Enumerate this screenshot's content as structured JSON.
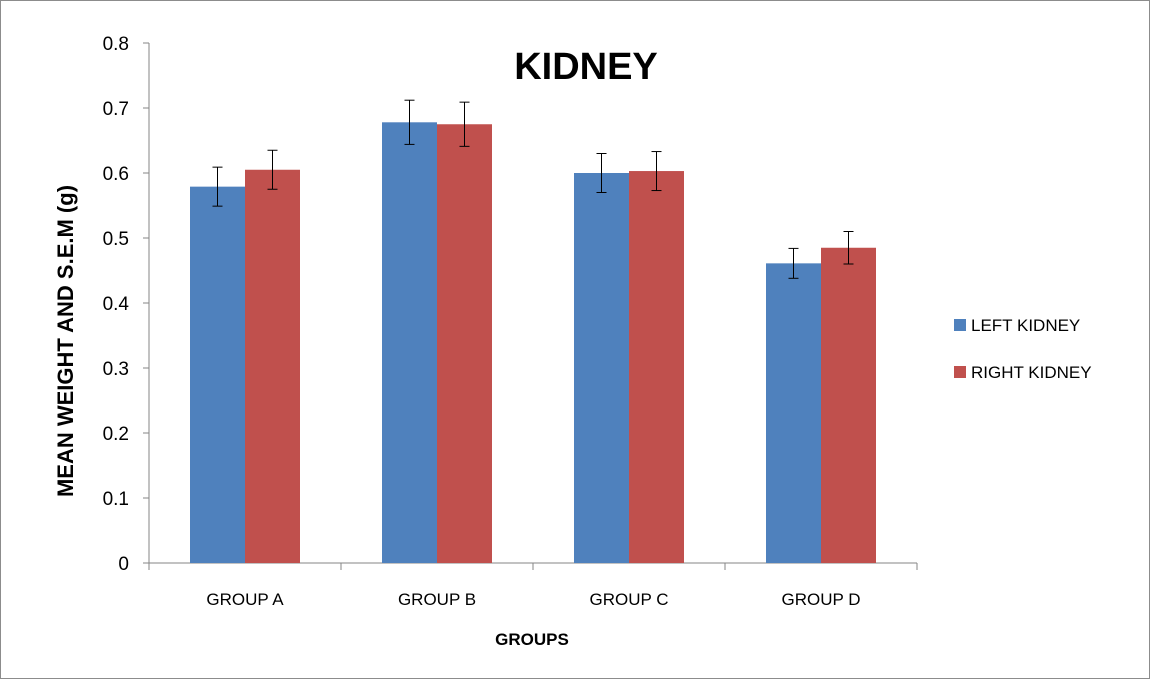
{
  "chart_data": {
    "type": "bar",
    "title": "KIDNEY",
    "xlabel": "GROUPS",
    "ylabel": "MEAN WEIGHT AND S.E.M (g)",
    "categories": [
      "GROUP A",
      "GROUP B",
      "GROUP C",
      "GROUP D"
    ],
    "ylim": [
      0,
      0.8
    ],
    "yticks": [
      "0",
      "0.1",
      "0.2",
      "0.3",
      "0.4",
      "0.5",
      "0.6",
      "0.7",
      "0.8"
    ],
    "grid": false,
    "legend_position": "right",
    "series": [
      {
        "name": "LEFT KIDNEY",
        "color": "#4f81bd",
        "values": [
          0.579,
          0.678,
          0.6,
          0.461
        ],
        "errors": [
          0.03,
          0.034,
          0.03,
          0.023
        ]
      },
      {
        "name": "RIGHT KIDNEY",
        "color": "#c0504d",
        "values": [
          0.605,
          0.675,
          0.603,
          0.485
        ],
        "errors": [
          0.03,
          0.034,
          0.03,
          0.025
        ]
      }
    ]
  }
}
